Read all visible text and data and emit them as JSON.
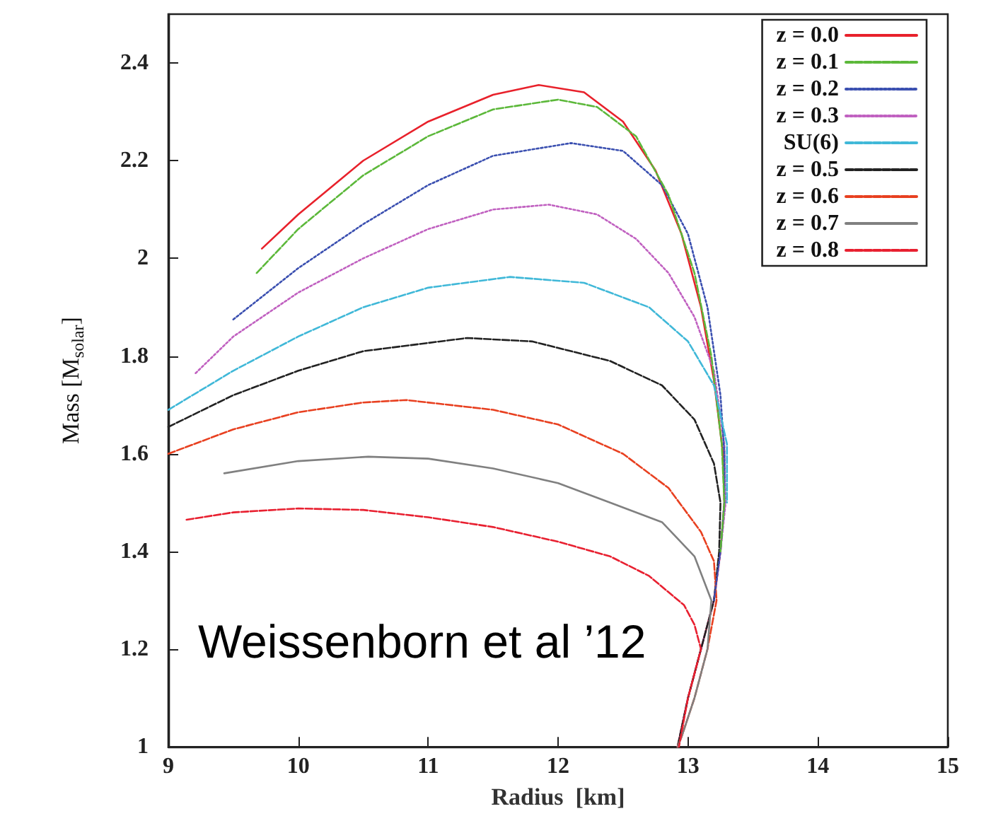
{
  "chart_data": {
    "type": "line",
    "xlabel": "Radius  [km]",
    "ylabel": "Mass [M$_{solar}$]",
    "xlim": [
      9,
      15
    ],
    "xticks": [
      9,
      10,
      11,
      12,
      13,
      14,
      15
    ],
    "ylim": [
      1,
      2.5
    ],
    "yticks": [
      1,
      1.2,
      1.4,
      1.6,
      1.8,
      2,
      2.2,
      2.4
    ],
    "grid": false,
    "legend": "top right",
    "marker": "none",
    "annotations": [
      "Weissenborn et al ’12"
    ],
    "series": [
      {
        "name": "z = 0.0",
        "color": "#e8212b",
        "line_style": "solid",
        "x": [
          9.72,
          10,
          10.5,
          11,
          11.5,
          11.85,
          12.2,
          12.5,
          12.75,
          12.95,
          13.1,
          13.2,
          13.27,
          13.28,
          13.25,
          13.2,
          13.1,
          13.0,
          12.92
        ],
        "values": [
          2.02,
          2.09,
          2.2,
          2.28,
          2.335,
          2.355,
          2.34,
          2.28,
          2.18,
          2.05,
          1.9,
          1.75,
          1.6,
          1.5,
          1.4,
          1.3,
          1.2,
          1.1,
          1.0
        ]
      },
      {
        "name": "z = 0.1",
        "color": "#5cb83a",
        "line_style": "dashed",
        "x": [
          9.68,
          10,
          10.5,
          11,
          11.5,
          12,
          12.3,
          12.6,
          12.85,
          13.05,
          13.18,
          13.26,
          13.28,
          13.25
        ],
        "values": [
          1.97,
          2.06,
          2.17,
          2.25,
          2.305,
          2.325,
          2.31,
          2.25,
          2.13,
          1.97,
          1.8,
          1.62,
          1.5,
          1.4
        ]
      },
      {
        "name": "z = 0.2",
        "color": "#3a4fb0",
        "line_style": "dotted",
        "x": [
          9.5,
          10,
          10.5,
          11,
          11.5,
          12.1,
          12.5,
          12.8,
          13.0,
          13.15,
          13.25,
          13.28,
          13.28,
          13.25,
          13.2
        ],
        "values": [
          1.875,
          1.98,
          2.07,
          2.15,
          2.21,
          2.236,
          2.22,
          2.15,
          2.05,
          1.9,
          1.72,
          1.6,
          1.5,
          1.4,
          1.3
        ]
      },
      {
        "name": "z = 0.3",
        "color": "#c060c0",
        "line_style": "dotted",
        "x": [
          9.21,
          9.5,
          10,
          10.5,
          11,
          11.5,
          11.93,
          12.3,
          12.6,
          12.85,
          13.05,
          13.2,
          13.28,
          13.29,
          13.25,
          13.2,
          13.1,
          13.0,
          12.92
        ],
        "values": [
          1.765,
          1.84,
          1.93,
          2.0,
          2.06,
          2.1,
          2.11,
          2.09,
          2.04,
          1.97,
          1.88,
          1.77,
          1.62,
          1.5,
          1.4,
          1.3,
          1.2,
          1.1,
          1.0
        ]
      },
      {
        "name": "SU(6)",
        "color": "#40b8d8",
        "line_style": "dashed",
        "x": [
          9,
          9.5,
          10,
          10.5,
          11,
          11.63,
          12.2,
          12.7,
          13.0,
          13.2,
          13.3,
          13.3
        ],
        "values": [
          1.69,
          1.77,
          1.84,
          1.9,
          1.94,
          1.962,
          1.95,
          1.9,
          1.83,
          1.74,
          1.62,
          1.5
        ]
      },
      {
        "name": "z = 0.5",
        "color": "#222222",
        "line_style": "dashed",
        "x": [
          9,
          9.5,
          10,
          10.5,
          11.3,
          11.8,
          12.4,
          12.8,
          13.05,
          13.2,
          13.25,
          13.24,
          13.2,
          13.1,
          13.0,
          12.92
        ],
        "values": [
          1.655,
          1.72,
          1.77,
          1.81,
          1.837,
          1.83,
          1.79,
          1.74,
          1.67,
          1.58,
          1.5,
          1.4,
          1.3,
          1.2,
          1.1,
          1.0
        ]
      },
      {
        "name": "z = 0.6",
        "color": "#e84020",
        "line_style": "dashed",
        "x": [
          9,
          9.5,
          10,
          10.5,
          10.83,
          11.5,
          12,
          12.5,
          12.85,
          13.1,
          13.2,
          13.22,
          13.15,
          13.05,
          12.95,
          12.92
        ],
        "values": [
          1.6,
          1.65,
          1.685,
          1.705,
          1.71,
          1.69,
          1.66,
          1.6,
          1.53,
          1.44,
          1.38,
          1.3,
          1.2,
          1.1,
          1.02,
          1.0
        ]
      },
      {
        "name": "z = 0.7",
        "color": "#808080",
        "line_style": "solid",
        "x": [
          9.43,
          10,
          10.54,
          11,
          11.5,
          12,
          12.4,
          12.8,
          13.05,
          13.18,
          13.15,
          13.05,
          12.95,
          12.92
        ],
        "values": [
          1.56,
          1.585,
          1.594,
          1.59,
          1.57,
          1.54,
          1.5,
          1.46,
          1.39,
          1.3,
          1.2,
          1.1,
          1.02,
          1.0
        ]
      },
      {
        "name": "z = 0.8",
        "color": "#e82030",
        "line_style": "dashed",
        "x": [
          9.14,
          9.5,
          10,
          10.5,
          11,
          11.5,
          12,
          12.4,
          12.7,
          12.97,
          13.05,
          13.1,
          13.0,
          12.93
        ],
        "values": [
          1.465,
          1.48,
          1.488,
          1.485,
          1.47,
          1.45,
          1.42,
          1.39,
          1.35,
          1.29,
          1.25,
          1.2,
          1.1,
          1.0
        ]
      }
    ]
  }
}
